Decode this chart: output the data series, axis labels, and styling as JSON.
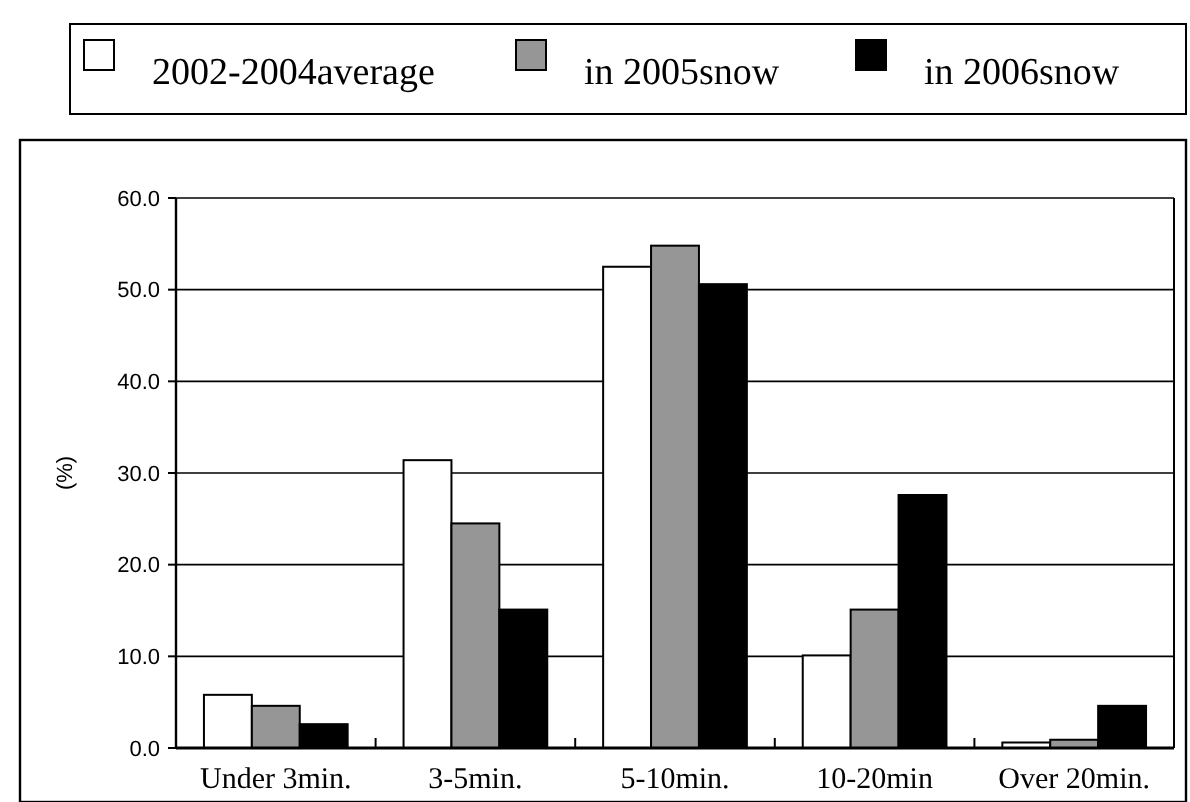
{
  "chart_data": {
    "type": "bar",
    "ylabel": "(%)",
    "categories": [
      "Under 3min.",
      "3-5min.",
      "5-10min.",
      "10-20min",
      "Over 20min."
    ],
    "series": [
      {
        "name": "2002-2004average",
        "color": "#ffffff",
        "values": [
          5.8,
          31.4,
          52.5,
          10.1,
          0.6
        ]
      },
      {
        "name": "in 2005snow",
        "color": "#969696",
        "values": [
          4.6,
          24.5,
          54.8,
          15.1,
          0.9
        ]
      },
      {
        "name": "in 2006snow",
        "color": "#000000",
        "values": [
          2.6,
          15.1,
          50.6,
          27.6,
          4.6
        ]
      }
    ],
    "ylim": [
      0,
      60
    ],
    "yticks": [
      {
        "value": 0,
        "label": "0.0"
      },
      {
        "value": 10,
        "label": "10.0"
      },
      {
        "value": 20,
        "label": "20.0"
      },
      {
        "value": 30,
        "label": "30.0"
      },
      {
        "value": 40,
        "label": "40.0"
      },
      {
        "value": 50,
        "label": "50.0"
      },
      {
        "value": 60,
        "label": "60.0"
      }
    ],
    "grid": "y",
    "legend": "top"
  }
}
